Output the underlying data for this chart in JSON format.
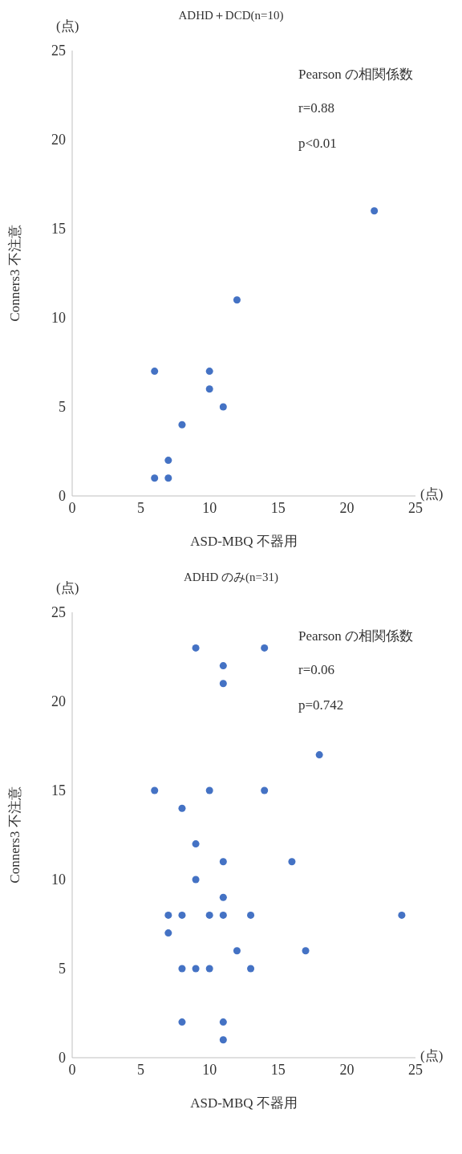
{
  "chart_data": [
    {
      "type": "scatter",
      "title": "ADHD＋DCD(n=10)",
      "xlabel": "ASD-MBQ 不器用",
      "ylabel": "Conners3 不注意",
      "annotations": [
        "(点)",
        "Pearson の相関係数",
        "r=0.88",
        "p<0.01",
        "(点)"
      ],
      "x": [
        22,
        12,
        6,
        10,
        10,
        11,
        8,
        7,
        6,
        7
      ],
      "series": [
        {
          "color": "#4472c4",
          "values": [
            16,
            11,
            7,
            7,
            6,
            5,
            4,
            2,
            1,
            1
          ]
        }
      ],
      "xlim": [
        0,
        25
      ],
      "ylim": [
        0,
        25
      ],
      "xticks": [
        0,
        5,
        10,
        15,
        20,
        25
      ],
      "yticks": [
        0,
        5,
        10,
        15,
        20,
        25
      ],
      "marker": "circle",
      "grid": false,
      "legend": false
    },
    {
      "type": "scatter",
      "title": "ADHD のみ(n=31)",
      "xlabel": "ASD-MBQ 不器用",
      "ylabel": "Conners3 不注意",
      "annotations": [
        "(点)",
        "Pearson の相関係数",
        "r=0.06",
        "p=0.742",
        "(点)"
      ],
      "x": [
        9,
        14,
        11,
        11,
        18,
        6,
        10,
        14,
        8,
        9,
        11,
        16,
        9,
        11,
        7,
        8,
        10,
        11,
        13,
        24,
        7,
        12,
        17,
        8,
        9,
        10,
        13,
        8,
        11,
        11
      ],
      "series": [
        {
          "color": "#4472c4",
          "values": [
            23,
            23,
            22,
            21,
            17,
            15,
            15,
            15,
            14,
            12,
            11,
            11,
            10,
            9,
            8,
            8,
            8,
            8,
            8,
            8,
            7,
            6,
            6,
            5,
            5,
            5,
            5,
            2,
            2,
            1
          ]
        }
      ],
      "xlim": [
        0,
        25
      ],
      "ylim": [
        0,
        25
      ],
      "xticks": [
        0,
        5,
        10,
        15,
        20,
        25
      ],
      "yticks": [
        0,
        5,
        10,
        15,
        20,
        25
      ],
      "marker": "circle",
      "grid": false,
      "legend": false
    }
  ]
}
